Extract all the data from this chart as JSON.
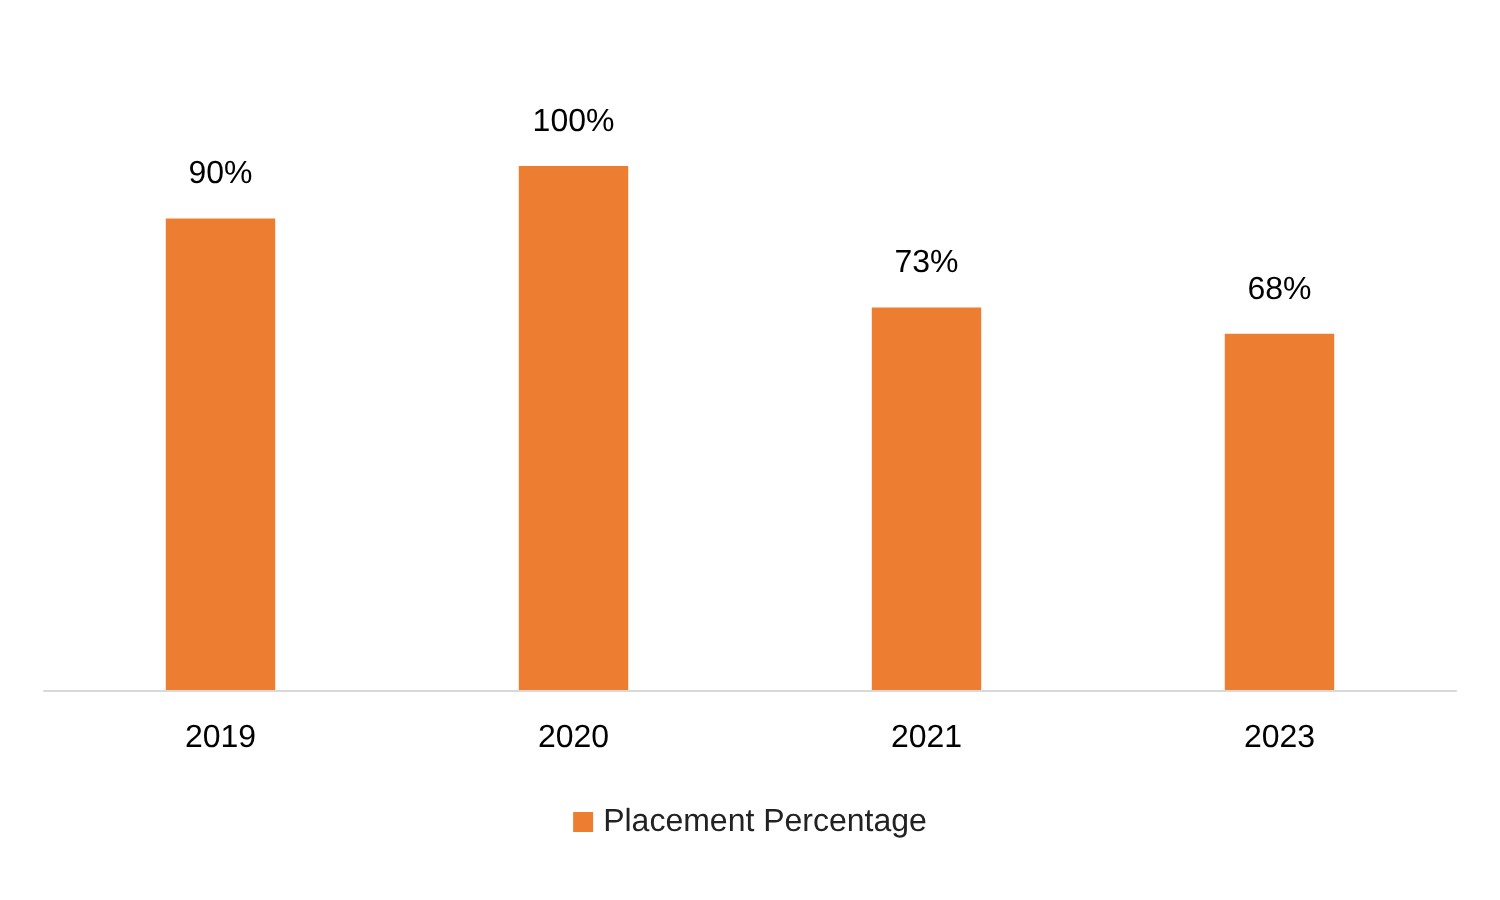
{
  "chart_data": {
    "type": "bar",
    "categories": [
      "2019",
      "2020",
      "2021",
      "2023"
    ],
    "series": [
      {
        "name": "Placement Percentage",
        "color": "#ed7d31",
        "values": [
          90,
          100,
          73,
          68
        ],
        "value_labels": [
          "90%",
          "100%",
          "73%",
          "68%"
        ]
      }
    ],
    "legend": "bottom",
    "grid": false
  }
}
